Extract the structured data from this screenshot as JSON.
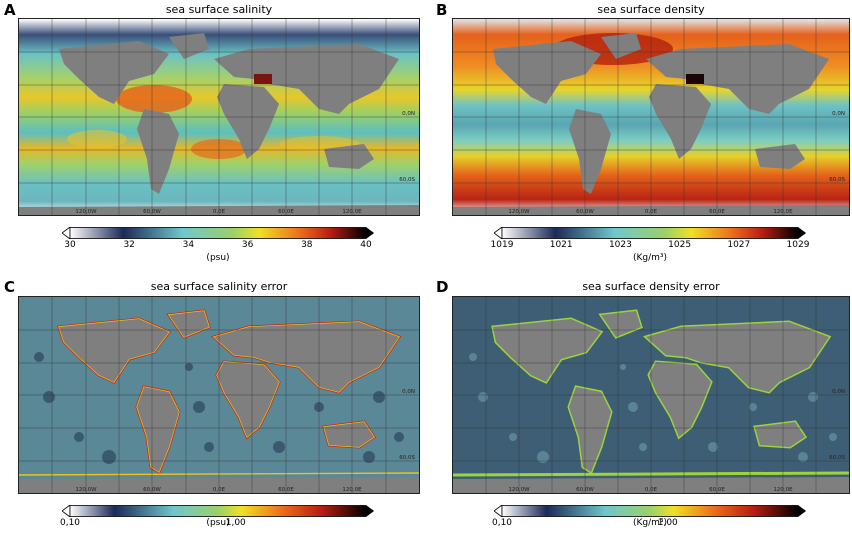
{
  "panels": [
    {
      "letter": "A",
      "title": "sea surface salinity",
      "unit": "(psu)",
      "ticks": [
        "30",
        "32",
        "34",
        "36",
        "38",
        "40"
      ],
      "lon_labels": [
        "120,0W",
        "60,0W",
        "0,0E",
        "60,0E",
        "120,0E"
      ],
      "lat_labels": [
        "0,0N",
        "60,0S"
      ],
      "palette": "salinity"
    },
    {
      "letter": "B",
      "title": "sea surface density",
      "unit": "(Kg/m³)",
      "ticks": [
        "1019",
        "1021",
        "1023",
        "1025",
        "1027",
        "1029"
      ],
      "lon_labels": [
        "120,0W",
        "60,0W",
        "0,0E",
        "60,0E",
        "120,0E"
      ],
      "lat_labels": [
        "0,0N",
        "60,0S"
      ],
      "palette": "density"
    },
    {
      "letter": "C",
      "title": "sea surface salinity error",
      "unit": "(psu)",
      "ticks": [
        "0,10",
        "1,00"
      ],
      "lon_labels": [
        "120,0W",
        "60,0W",
        "0,0E",
        "60,0E",
        "120,0E"
      ],
      "lat_labels": [
        "0,0N",
        "60,0S"
      ],
      "palette": "error"
    },
    {
      "letter": "D",
      "title": "sea surface density error",
      "unit": "(Kg/m³)",
      "ticks": [
        "0,10",
        "1,00"
      ],
      "lon_labels": [
        "120,0W",
        "60,0W",
        "0,0E",
        "60,0E",
        "120,0E"
      ],
      "lat_labels": [
        "0,0N",
        "60,0S"
      ],
      "palette": "error2"
    }
  ],
  "colors": {
    "land": "#7f7f7f",
    "ice": "#ffffff",
    "salinity_stops": [
      "#ffffff",
      "#1c2a57",
      "#6fc7cc",
      "#9cd06a",
      "#f2e024",
      "#ec6b1c",
      "#b81d12",
      "#000000"
    ],
    "density_stops": [
      "#ffffff",
      "#1c2a57",
      "#6fc7cc",
      "#9cd06a",
      "#f2e024",
      "#ec6b1c",
      "#b81d12",
      "#000000"
    ],
    "error_ocean": "#5a8896",
    "coast_error": "#f2c21a",
    "coast_error_outer": "#c8281c",
    "coast_error2": "#9bd43b"
  }
}
